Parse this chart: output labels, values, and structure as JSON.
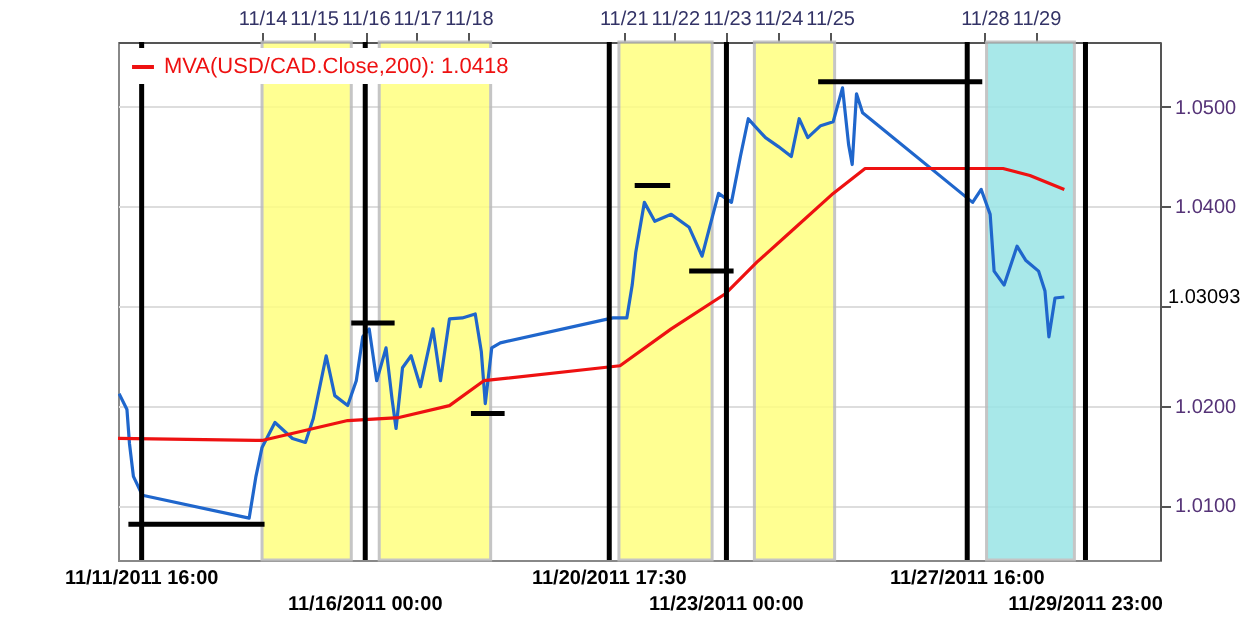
{
  "chart_data": {
    "type": "line",
    "annotations": [
      "1.03093"
    ],
    "xlim": [
      "2011-11-11T05:00",
      "2011-12-01T09:40"
    ],
    "xticks": [
      {
        "value": "2011-11-14",
        "label": "11/14"
      },
      {
        "value": "2011-11-15",
        "label": "11/15"
      },
      {
        "value": "2011-11-16",
        "label": "11/16"
      },
      {
        "value": "2011-11-17",
        "label": "11/17"
      },
      {
        "value": "2011-11-18",
        "label": "11/18"
      },
      {
        "value": "2011-11-21",
        "label": "11/21"
      },
      {
        "value": "2011-11-22",
        "label": "11/22"
      },
      {
        "value": "2011-11-23",
        "label": "11/23"
      },
      {
        "value": "2011-11-24",
        "label": "11/24"
      },
      {
        "value": "2011-11-25",
        "label": "11/25"
      },
      {
        "value": "2011-11-28",
        "label": "11/28"
      },
      {
        "value": "2011-11-29",
        "label": "11/29"
      }
    ],
    "ylim": [
      1.0045,
      1.0565
    ],
    "yticks": [
      {
        "value": 1.01,
        "label": "1.0100"
      },
      {
        "value": 1.02,
        "label": "1.0200"
      },
      {
        "value": 1.03,
        "label": null
      },
      {
        "value": 1.04,
        "label": "1.0400"
      },
      {
        "value": 1.05,
        "label": "1.0500"
      }
    ],
    "grid": "y",
    "legend": "top left",
    "series": [
      {
        "color": "#1f66cc",
        "x": [
          "2011-11-11T05:30",
          "2011-11-11T09:10",
          "2011-11-11T10:20",
          "2011-11-11T12:10",
          "2011-11-11T16:20",
          "2011-11-13T18:00",
          "2011-11-13T21:10",
          "2011-11-14T00:00",
          "2011-11-14T06:00",
          "2011-11-14T14:10",
          "2011-11-14T20:10",
          "2011-11-14T23:50",
          "2011-11-15T05:50",
          "2011-11-15T09:50",
          "2011-11-15T15:50",
          "2011-11-15T19:50",
          "2011-11-15T22:50",
          "2011-11-16T01:50",
          "2011-11-16T05:20",
          "2011-11-16T09:40",
          "2011-11-16T12:30",
          "2011-11-16T14:20",
          "2011-11-16T17:20",
          "2011-11-16T21:20",
          "2011-11-17T01:40",
          "2011-11-17T07:30",
          "2011-11-17T11:00",
          "2011-11-17T15:10",
          "2011-11-17T21:10",
          "2011-11-18T03:10",
          "2011-11-18T06:00",
          "2011-11-18T07:50",
          "2011-11-18T10:50",
          "2011-11-18T14:50",
          "2011-11-20T19:10",
          "2011-11-21T01:40",
          "2011-11-21T04:10",
          "2011-11-21T05:50",
          "2011-11-21T09:50",
          "2011-11-21T14:40",
          "2011-11-21T22:20",
          "2011-11-22T06:40",
          "2011-11-22T12:40",
          "2011-11-22T16:10",
          "2011-11-22T20:20",
          "2011-11-23T02:20",
          "2011-11-23T06:30",
          "2011-11-23T10:10",
          "2011-11-23T13:00",
          "2011-11-23T18:10",
          "2011-11-24T00:10",
          "2011-11-24T06:10",
          "2011-11-24T09:50",
          "2011-11-24T13:50",
          "2011-11-24T19:50",
          "2011-11-25T01:40",
          "2011-11-25T06:00",
          "2011-11-25T08:50",
          "2011-11-25T10:30",
          "2011-11-25T12:30",
          "2011-11-25T15:20",
          "2011-11-27T18:30",
          "2011-11-27T22:30",
          "2011-11-28T02:40",
          "2011-11-28T04:30",
          "2011-11-28T09:10",
          "2011-11-28T15:10",
          "2011-11-28T19:10",
          "2011-11-29T01:10",
          "2011-11-29T04:10",
          "2011-11-29T06:00",
          "2011-11-29T08:50",
          "2011-11-29T13:10"
        ],
        "values": [
          1.0212,
          1.0196,
          1.0162,
          1.0129,
          1.011,
          1.0087,
          1.0129,
          1.0158,
          1.0183,
          1.0167,
          1.0163,
          1.0187,
          1.025,
          1.021,
          1.02,
          1.0225,
          1.0269,
          1.0277,
          1.0225,
          1.0258,
          1.0206,
          1.0177,
          1.0238,
          1.025,
          1.0219,
          1.0277,
          1.0225,
          1.0287,
          1.0288,
          1.0292,
          1.0254,
          1.0202,
          1.0258,
          1.0263,
          1.0288,
          1.0288,
          1.0321,
          1.0354,
          1.0404,
          1.0385,
          1.0392,
          1.0379,
          1.035,
          1.0379,
          1.0413,
          1.0404,
          1.045,
          1.0488,
          1.0481,
          1.0469,
          1.046,
          1.045,
          1.0488,
          1.0469,
          1.0481,
          1.0485,
          1.0519,
          1.0462,
          1.0442,
          1.0513,
          1.0494,
          1.0404,
          1.0417,
          1.0392,
          1.0335,
          1.0321,
          1.036,
          1.0346,
          1.0335,
          1.0315,
          1.0269,
          1.0308,
          1.0309
        ]
      },
      {
        "name": "MVA(USD/CAD.Close,200): 1.0418",
        "color": "#ee1111",
        "x": [
          "2011-11-11T05:00",
          "2011-11-14T00:00",
          "2011-11-15T15:50",
          "2011-11-16T15:40",
          "2011-11-17T15:10",
          "2011-11-18T07:10",
          "2011-11-20T22:30",
          "2011-11-21T22:20",
          "2011-11-22T23:20",
          "2011-11-23T14:10",
          "2011-11-24T06:10",
          "2011-11-25T01:40",
          "2011-11-25T16:30",
          "2011-11-28T08:40",
          "2011-11-28T21:10",
          "2011-11-29T13:10"
        ],
        "values": [
          1.0167,
          1.0165,
          1.0185,
          1.0188,
          1.02,
          1.0225,
          1.024,
          1.0277,
          1.0312,
          1.0344,
          1.0375,
          1.0413,
          1.0438,
          1.0438,
          1.0431,
          1.0417
        ]
      },
      {
        "color": "#000000",
        "x": [
          "2011-11-11T09:50",
          "2011-11-14T01:10"
        ],
        "values": [
          1.0081,
          1.0081
        ]
      },
      {
        "color": "#000000",
        "x": [
          "2011-11-15T17:30",
          "2011-11-16T13:40"
        ],
        "values": [
          1.0283,
          1.0283
        ]
      },
      {
        "color": "#000000",
        "x": [
          "2011-11-18T01:10",
          "2011-11-18T16:50"
        ],
        "values": [
          1.0192,
          1.0192
        ]
      },
      {
        "color": "#000000",
        "x": [
          "2011-11-21T05:20",
          "2011-11-21T21:50"
        ],
        "values": [
          1.0421,
          1.0421
        ]
      },
      {
        "color": "#000000",
        "x": [
          "2011-11-22T06:40",
          "2011-11-23T03:20"
        ],
        "values": [
          1.0335,
          1.0335
        ]
      },
      {
        "color": "#000000",
        "x": [
          "2011-11-24T18:40",
          "2011-11-27T23:00"
        ],
        "values": [
          1.0525,
          1.0525
        ]
      }
    ],
    "ref_lines": [
      {
        "axis": "x",
        "value": "2011-11-11T16:00",
        "label": "11/11/2011 16:00",
        "color": "#000000"
      },
      {
        "axis": "x",
        "value": "2011-11-16T00:00",
        "label": "11/16/2011 00:00",
        "color": "#000000"
      },
      {
        "axis": "x",
        "value": "2011-11-20T17:30",
        "label": "11/20/2011 17:30",
        "color": "#000000"
      },
      {
        "axis": "x",
        "value": "2011-11-23T00:00",
        "label": "11/23/2011 00:00",
        "color": "#000000"
      },
      {
        "axis": "x",
        "value": "2011-11-27T16:00",
        "label": "11/27/2011 16:00",
        "color": "#000000"
      },
      {
        "axis": "x",
        "value": "2011-11-29T23:00",
        "label": "11/29/2011 23:00",
        "color": "#000000"
      }
    ],
    "bands": [
      {
        "axis": "x",
        "from": "2011-11-14T00:00",
        "to": "2011-11-15T17:30",
        "color": "#ffff80"
      },
      {
        "axis": "x",
        "from": "2011-11-16T06:30",
        "to": "2011-11-18T10:20",
        "color": "#ffff80"
      },
      {
        "axis": "x",
        "from": "2011-11-20T22:00",
        "to": "2011-11-22T17:20",
        "color": "#ffff80"
      },
      {
        "axis": "x",
        "from": "2011-11-23T13:00",
        "to": "2011-11-25T02:20",
        "color": "#ffff80"
      },
      {
        "axis": "x",
        "from": "2011-11-28T01:00",
        "to": "2011-11-29T17:50",
        "color": "#99e5e6"
      }
    ]
  }
}
